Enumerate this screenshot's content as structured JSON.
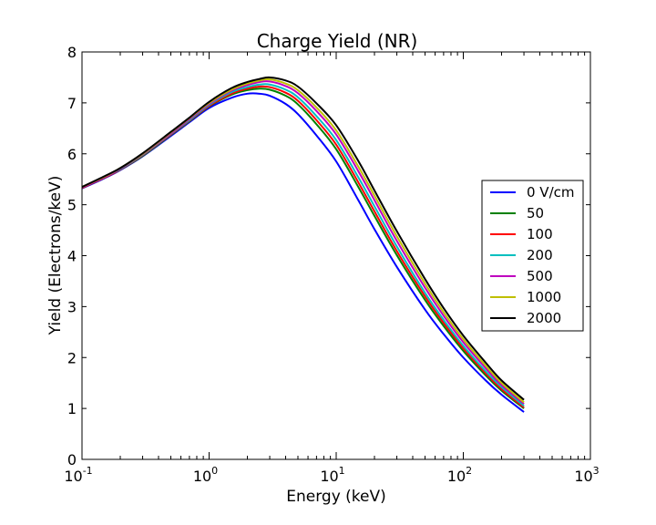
{
  "chart_data": {
    "type": "line",
    "title": "Charge Yield (NR)",
    "xlabel": "Energy (keV)",
    "ylabel": "Yield (Electrons/keV)",
    "xscale": "log",
    "xlim": [
      0.1,
      1000
    ],
    "ylim": [
      0,
      8
    ],
    "x_ticks": [
      0.1,
      1,
      10,
      100,
      1000
    ],
    "x_tick_labels": [
      {
        "base": "10",
        "exp": "-1"
      },
      {
        "base": "10",
        "exp": "0"
      },
      {
        "base": "10",
        "exp": "1"
      },
      {
        "base": "10",
        "exp": "2"
      },
      {
        "base": "10",
        "exp": "3"
      }
    ],
    "y_ticks": [
      0,
      1,
      2,
      3,
      4,
      5,
      6,
      7,
      8
    ],
    "y_tick_labels": [
      "0",
      "1",
      "2",
      "3",
      "4",
      "5",
      "6",
      "7",
      "8"
    ],
    "grid": false,
    "legend_position": "right",
    "x": [
      0.1,
      0.15,
      0.2,
      0.3,
      0.5,
      0.7,
      1,
      1.5,
      2,
      2.5,
      3,
      4,
      5,
      7,
      10,
      15,
      20,
      30,
      50,
      70,
      100,
      150,
      200,
      300
    ],
    "series": [
      {
        "name": "0 V/cm",
        "color": "#0000ff",
        "values": [
          5.32,
          5.52,
          5.68,
          5.95,
          6.35,
          6.62,
          6.9,
          7.1,
          7.18,
          7.18,
          7.14,
          6.98,
          6.78,
          6.36,
          5.85,
          5.08,
          4.52,
          3.78,
          2.94,
          2.46,
          2.0,
          1.55,
          1.27,
          0.93
        ]
      },
      {
        "name": "50",
        "color": "#008000",
        "values": [
          5.33,
          5.53,
          5.69,
          5.96,
          6.37,
          6.64,
          6.93,
          7.16,
          7.25,
          7.28,
          7.26,
          7.14,
          6.97,
          6.58,
          6.09,
          5.34,
          4.78,
          4.01,
          3.13,
          2.62,
          2.13,
          1.65,
          1.35,
          1.0
        ]
      },
      {
        "name": "100",
        "color": "#ff0000",
        "values": [
          5.33,
          5.53,
          5.69,
          5.97,
          6.38,
          6.65,
          6.94,
          7.18,
          7.28,
          7.32,
          7.31,
          7.2,
          7.04,
          6.66,
          6.18,
          5.43,
          4.87,
          4.09,
          3.2,
          2.68,
          2.18,
          1.69,
          1.38,
          1.02
        ]
      },
      {
        "name": "200",
        "color": "#00bfbf",
        "values": [
          5.34,
          5.54,
          5.7,
          5.98,
          6.39,
          6.66,
          6.96,
          7.21,
          7.31,
          7.36,
          7.36,
          7.26,
          7.11,
          6.74,
          6.27,
          5.53,
          4.97,
          4.18,
          3.27,
          2.74,
          2.23,
          1.73,
          1.42,
          1.05
        ]
      },
      {
        "name": "500",
        "color": "#bf00bf",
        "values": [
          5.34,
          5.54,
          5.71,
          5.99,
          6.4,
          6.68,
          6.98,
          7.24,
          7.35,
          7.41,
          7.42,
          7.33,
          7.19,
          6.84,
          6.38,
          5.65,
          5.09,
          4.29,
          3.37,
          2.82,
          2.3,
          1.79,
          1.46,
          1.09
        ]
      },
      {
        "name": "1000",
        "color": "#bfbf00",
        "values": [
          5.35,
          5.55,
          5.72,
          6.0,
          6.42,
          6.7,
          7.0,
          7.26,
          7.38,
          7.44,
          7.46,
          7.38,
          7.25,
          6.91,
          6.46,
          5.74,
          5.18,
          4.38,
          3.45,
          2.89,
          2.36,
          1.84,
          1.5,
          1.12
        ]
      },
      {
        "name": "2000",
        "color": "#000000",
        "values": [
          5.35,
          5.56,
          5.72,
          6.01,
          6.43,
          6.71,
          7.02,
          7.29,
          7.41,
          7.47,
          7.5,
          7.44,
          7.32,
          6.99,
          6.56,
          5.85,
          5.28,
          4.48,
          3.54,
          2.97,
          2.43,
          1.9,
          1.55,
          1.17
        ]
      }
    ]
  }
}
